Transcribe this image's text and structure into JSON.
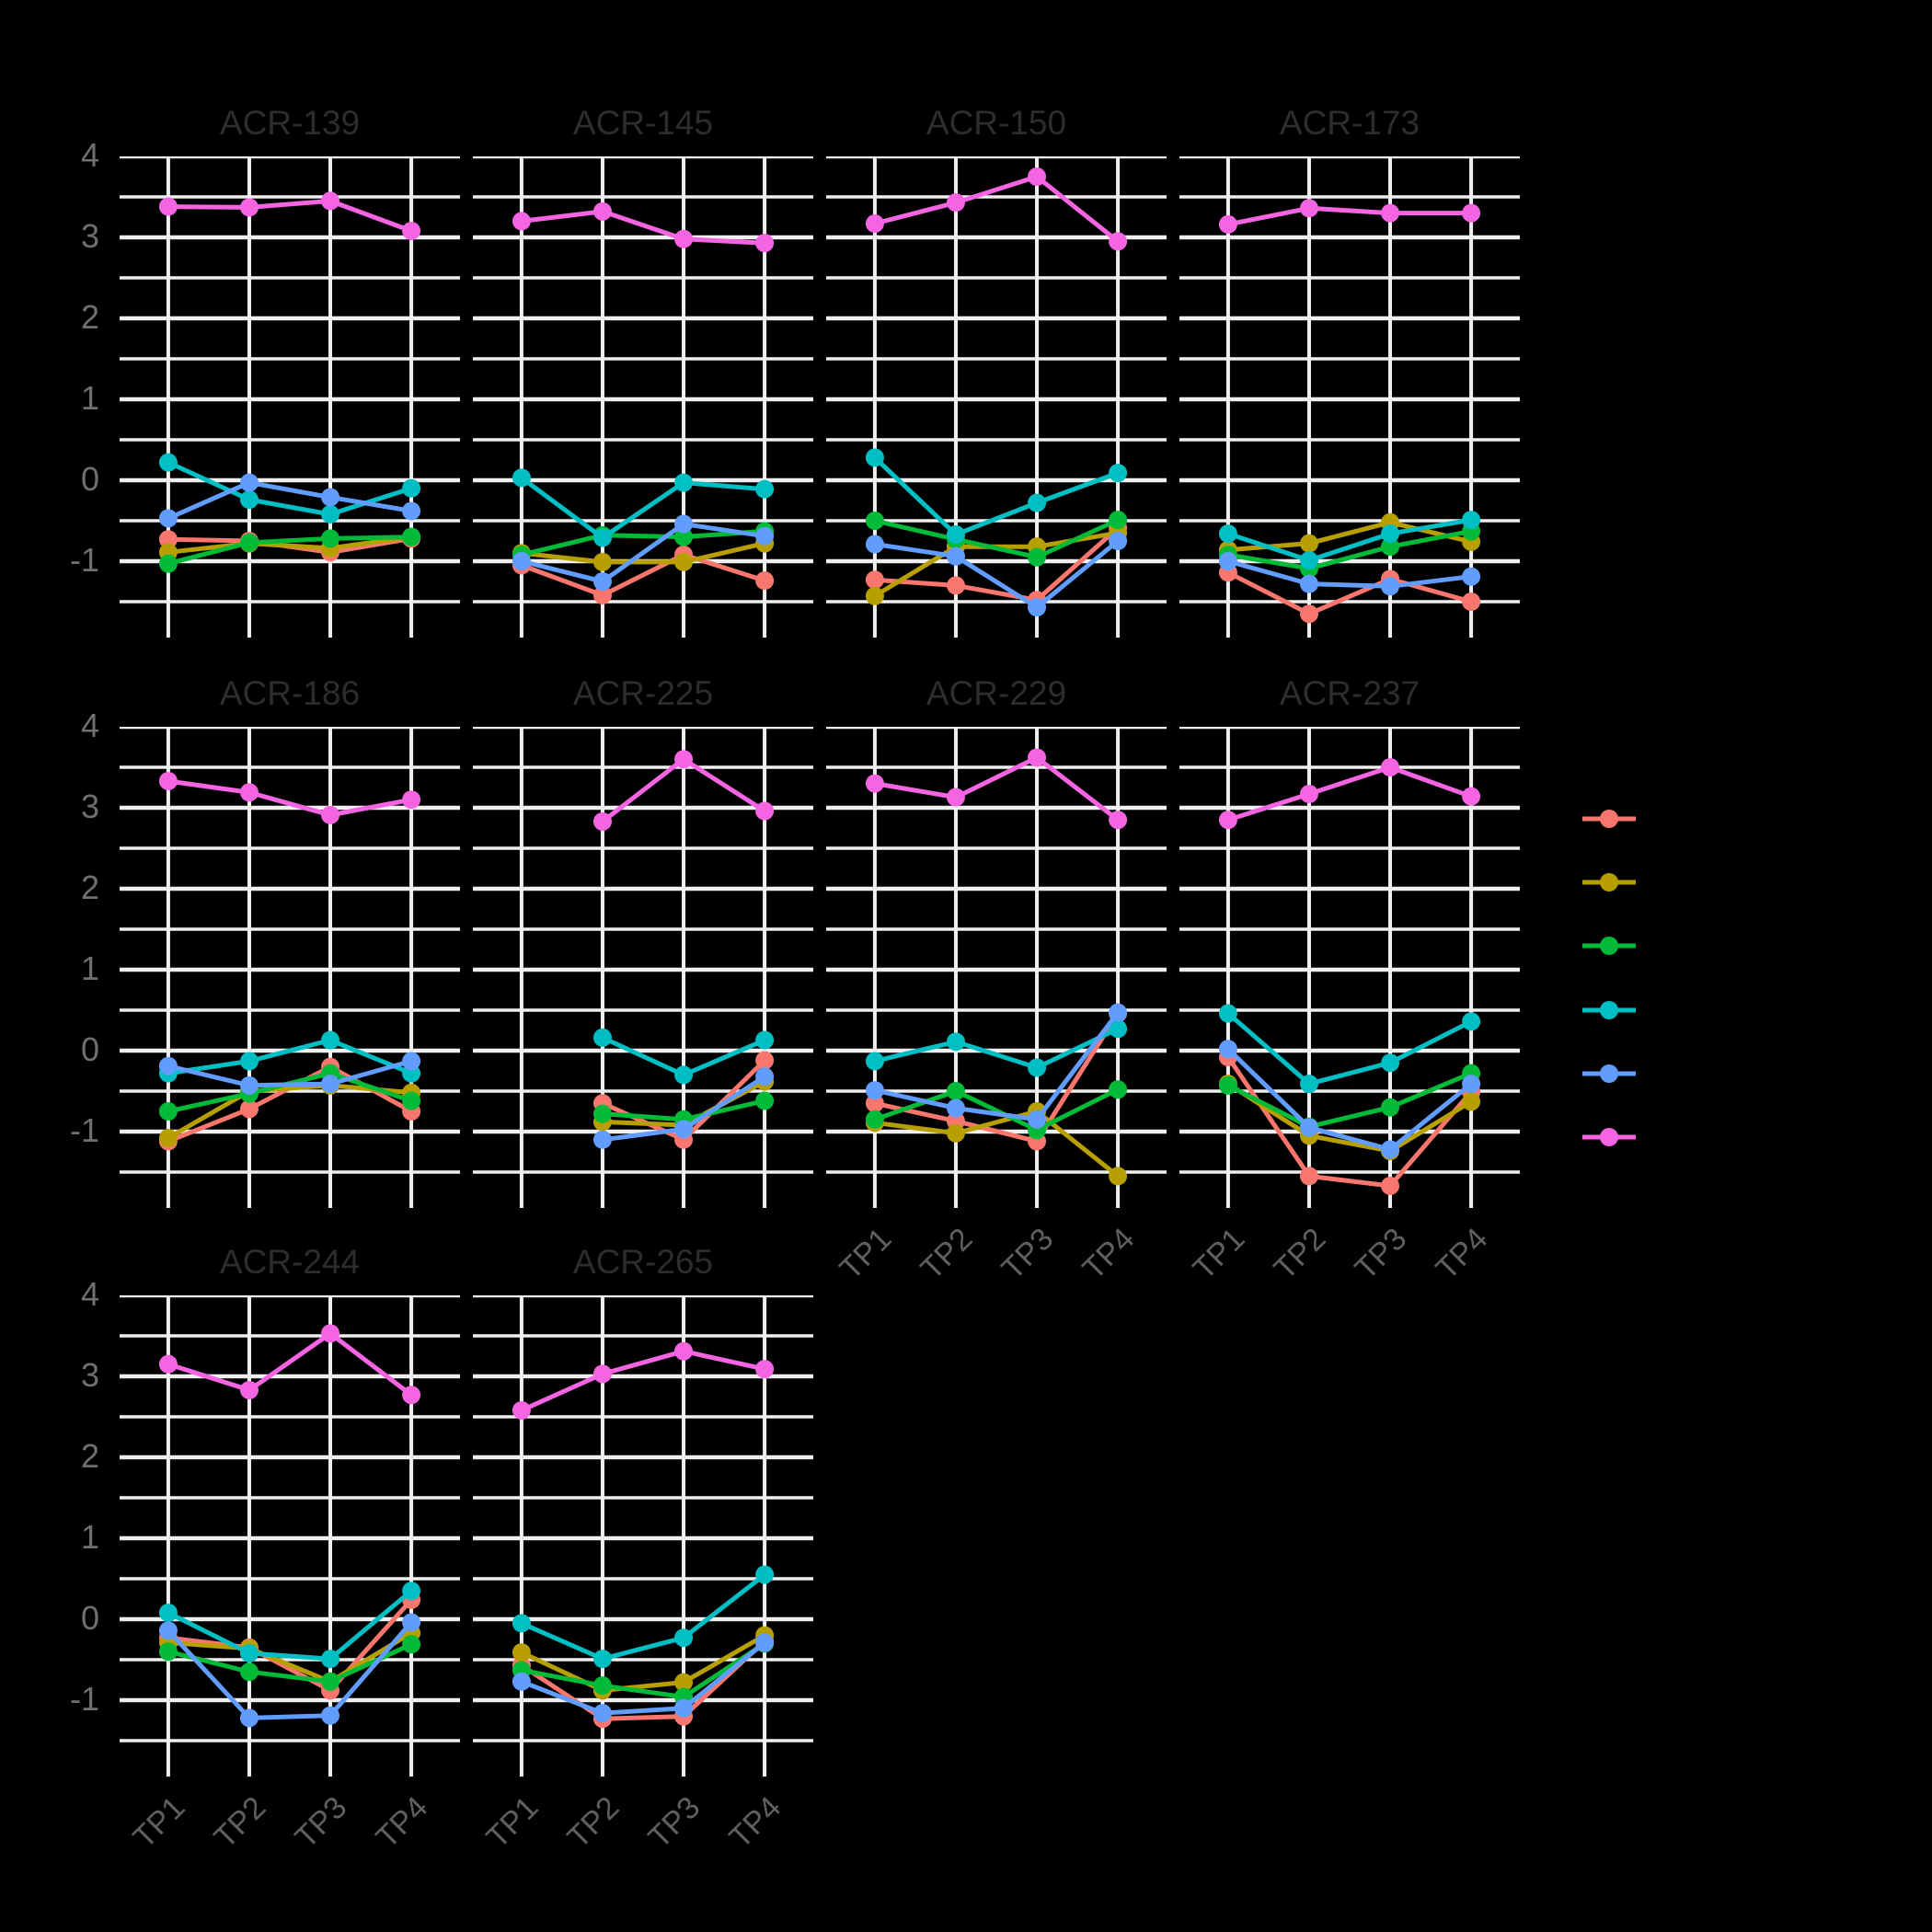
{
  "figure": {
    "background": "#000000",
    "gridline_color": "#efefef",
    "title_color": "#2d2d2d",
    "axis_text_color": "#6f6f6f",
    "x_axis_text_color": "#5f5f5f"
  },
  "axes": {
    "y_tick_labels": [
      "4",
      "3",
      "2",
      "1",
      "0",
      "-1"
    ],
    "y_tick_values": [
      4,
      3,
      2,
      1,
      0,
      -1
    ],
    "x_tick_labels": [
      "TP1",
      "TP2",
      "TP3",
      "TP4"
    ],
    "y_top": 4.0,
    "y_bottom": -1.94,
    "y_minor_step": 0.5
  },
  "legend": {
    "items": [
      {
        "name": "series-salmon",
        "color": "#F8766D",
        "label": ""
      },
      {
        "name": "series-olive",
        "color": "#B79F00",
        "label": ""
      },
      {
        "name": "series-green",
        "color": "#00BA38",
        "label": ""
      },
      {
        "name": "series-teal",
        "color": "#00BFC4",
        "label": ""
      },
      {
        "name": "series-blue",
        "color": "#619CFF",
        "label": ""
      },
      {
        "name": "series-magenta",
        "color": "#F564E3",
        "label": ""
      }
    ]
  },
  "chart_data": {
    "type": "line",
    "x": [
      "TP1",
      "TP2",
      "TP3",
      "TP4"
    ],
    "series_order": [
      "salmon",
      "olive",
      "green",
      "teal",
      "blue",
      "magenta"
    ],
    "series_colors": {
      "salmon": "#F8766D",
      "olive": "#B79F00",
      "green": "#00BA38",
      "teal": "#00BFC4",
      "blue": "#619CFF",
      "magenta": "#F564E3"
    },
    "ylim": [
      -1.94,
      4.0
    ],
    "grid": "both-major-and-minor",
    "legend_position": "right",
    "panels": [
      {
        "title": "ACR-139",
        "series": {
          "salmon": [
            -0.73,
            -0.75,
            -0.89,
            -0.72
          ],
          "olive": [
            -0.89,
            -0.78,
            -0.84,
            -0.7
          ],
          "green": [
            -1.03,
            -0.77,
            -0.72,
            -0.7
          ],
          "teal": [
            0.22,
            -0.24,
            -0.42,
            -0.1
          ],
          "blue": [
            -0.47,
            -0.03,
            -0.21,
            -0.38
          ],
          "magenta": [
            3.38,
            3.37,
            3.45,
            3.08
          ]
        }
      },
      {
        "title": "ACR-145",
        "series": {
          "salmon": [
            -1.05,
            -1.42,
            -0.92,
            -1.24
          ],
          "olive": [
            -0.9,
            -1.01,
            -1.01,
            -0.78
          ],
          "green": [
            -0.92,
            -0.68,
            -0.7,
            -0.63
          ],
          "teal": [
            0.03,
            -0.71,
            -0.03,
            -0.11
          ],
          "blue": [
            -1.0,
            -1.25,
            -0.54,
            -0.69
          ],
          "magenta": [
            3.2,
            3.32,
            2.98,
            2.93
          ]
        }
      },
      {
        "title": "ACR-150",
        "series": {
          "salmon": [
            -1.23,
            -1.3,
            -1.48,
            -0.59
          ],
          "olive": [
            -1.43,
            -0.82,
            -0.82,
            -0.65
          ],
          "green": [
            -0.5,
            -0.73,
            -0.95,
            -0.49
          ],
          "teal": [
            0.28,
            -0.67,
            -0.28,
            0.09
          ],
          "blue": [
            -0.79,
            -0.94,
            -1.57,
            -0.75
          ],
          "magenta": [
            3.17,
            3.43,
            3.75,
            2.95
          ]
        }
      },
      {
        "title": "ACR-173",
        "series": {
          "salmon": [
            -1.14,
            -1.65,
            -1.22,
            -1.5
          ],
          "olive": [
            -0.86,
            -0.78,
            -0.52,
            -0.76
          ],
          "green": [
            -0.92,
            -1.09,
            -0.82,
            -0.63
          ],
          "teal": [
            -0.66,
            -0.99,
            -0.66,
            -0.49
          ],
          "blue": [
            -1.0,
            -1.28,
            -1.31,
            -1.19
          ],
          "magenta": [
            3.16,
            3.36,
            3.3,
            3.3
          ]
        }
      },
      {
        "title": "ACR-186",
        "series": {
          "salmon": [
            -1.12,
            -0.72,
            -0.2,
            -0.75
          ],
          "olive": [
            -1.08,
            -0.5,
            -0.43,
            -0.52
          ],
          "green": [
            -0.75,
            -0.53,
            -0.28,
            -0.62
          ],
          "teal": [
            -0.28,
            -0.13,
            0.13,
            -0.28
          ],
          "blue": [
            -0.19,
            -0.43,
            -0.41,
            -0.13
          ],
          "magenta": [
            3.33,
            3.19,
            2.91,
            3.1
          ]
        }
      },
      {
        "title": "ACR-225",
        "series": {
          "salmon": [
            null,
            -0.65,
            -1.1,
            -0.12
          ],
          "olive": [
            null,
            -0.88,
            -0.92,
            -0.38
          ],
          "green": [
            null,
            -0.78,
            -0.85,
            -0.62
          ],
          "teal": [
            null,
            0.16,
            -0.3,
            0.13
          ],
          "blue": [
            null,
            -1.1,
            -0.97,
            -0.32
          ],
          "magenta": [
            null,
            2.83,
            3.6,
            2.96
          ]
        }
      },
      {
        "title": "ACR-229",
        "series": {
          "salmon": [
            -0.65,
            -0.87,
            -1.12,
            0.46
          ],
          "olive": [
            -0.89,
            -1.02,
            -0.75,
            -1.55
          ],
          "green": [
            -0.85,
            -0.5,
            -0.98,
            -0.48
          ],
          "teal": [
            -0.13,
            0.11,
            -0.21,
            0.27
          ],
          "blue": [
            -0.49,
            -0.71,
            -0.85,
            0.47
          ],
          "magenta": [
            3.3,
            3.13,
            3.62,
            2.85
          ]
        }
      },
      {
        "title": "ACR-237",
        "series": {
          "salmon": [
            -0.08,
            -1.55,
            -1.67,
            -0.51
          ],
          "olive": [
            -0.41,
            -1.05,
            -1.24,
            -0.63
          ],
          "green": [
            -0.43,
            -0.94,
            -0.7,
            -0.28
          ],
          "teal": [
            0.46,
            -0.41,
            -0.15,
            0.36
          ],
          "blue": [
            0.02,
            -0.95,
            -1.22,
            -0.41
          ],
          "magenta": [
            2.85,
            3.17,
            3.5,
            3.14
          ]
        }
      },
      {
        "title": "ACR-244",
        "series": {
          "salmon": [
            -0.23,
            -0.35,
            -0.88,
            0.24
          ],
          "olive": [
            -0.29,
            -0.36,
            -0.77,
            -0.17
          ],
          "green": [
            -0.4,
            -0.65,
            -0.77,
            -0.31
          ],
          "teal": [
            0.08,
            -0.42,
            -0.49,
            0.35
          ],
          "blue": [
            -0.14,
            -1.22,
            -1.19,
            -0.04
          ],
          "magenta": [
            3.15,
            2.83,
            3.53,
            2.77
          ]
        }
      },
      {
        "title": "ACR-265",
        "series": {
          "salmon": [
            -0.57,
            -1.23,
            -1.2,
            -0.27
          ],
          "olive": [
            -0.41,
            -0.88,
            -0.78,
            -0.2
          ],
          "green": [
            -0.63,
            -0.82,
            -0.96,
            -0.3
          ],
          "teal": [
            -0.05,
            -0.49,
            -0.23,
            0.55
          ],
          "blue": [
            -0.77,
            -1.16,
            -1.1,
            -0.29
          ],
          "magenta": [
            2.58,
            3.03,
            3.31,
            3.09
          ]
        }
      }
    ]
  }
}
